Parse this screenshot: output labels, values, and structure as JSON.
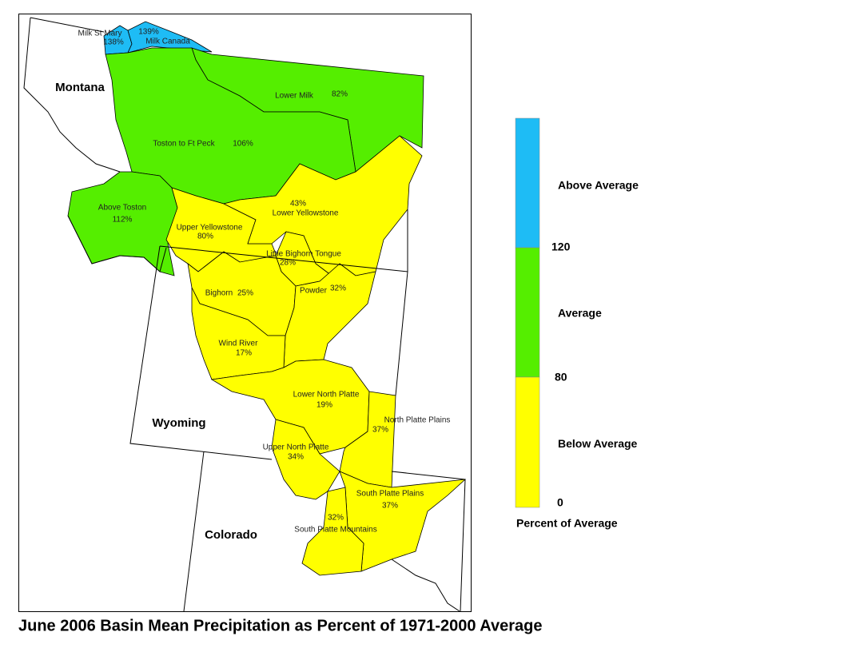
{
  "map": {
    "title": "June 2006 Basin Mean Precipitation as Percent of 1971-2000 Average",
    "states": [
      "Montana",
      "Wyoming",
      "Colorado"
    ],
    "basins": [
      {
        "name": "Milk St Mary",
        "value": 138,
        "value_label": "138%"
      },
      {
        "name": "Milk Canada",
        "value": 139,
        "value_label": "139%"
      },
      {
        "name": "Lower Milk",
        "value": 82,
        "value_label": "82%"
      },
      {
        "name": "Toston to Ft Peck",
        "value": 106,
        "value_label": "106%"
      },
      {
        "name": "Above Toston",
        "value": 112,
        "value_label": "112%"
      },
      {
        "name": "Upper Yellowstone",
        "value": 80,
        "value_label": "80%"
      },
      {
        "name": "Lower Yellowstone",
        "value": 43,
        "value_label": "43%"
      },
      {
        "name": "Little Bighorn Tongue",
        "value": 28,
        "value_label": "28%"
      },
      {
        "name": "Bighorn",
        "value": 25,
        "value_label": "25%"
      },
      {
        "name": "Powder",
        "value": 32,
        "value_label": "32%"
      },
      {
        "name": "Wind River",
        "value": 17,
        "value_label": "17%"
      },
      {
        "name": "Lower North Platte",
        "value": 19,
        "value_label": "19%"
      },
      {
        "name": "North Platte Plains",
        "value": 37,
        "value_label": "37%"
      },
      {
        "name": "Upper North Platte",
        "value": 34,
        "value_label": "34%"
      },
      {
        "name": "South Platte Plains",
        "value": 37,
        "value_label": "37%"
      },
      {
        "name": "South Platte Mountains",
        "value": 32,
        "value_label": "32%"
      }
    ],
    "legend": {
      "title": "Percent of Average",
      "classes": [
        {
          "label": "Above Average",
          "color": "#1ebcf5"
        },
        {
          "label": "Average",
          "color": "#55ee00"
        },
        {
          "label": "Below Average",
          "color": "#ffff00"
        }
      ],
      "breaks": [
        120,
        80,
        0
      ]
    }
  }
}
